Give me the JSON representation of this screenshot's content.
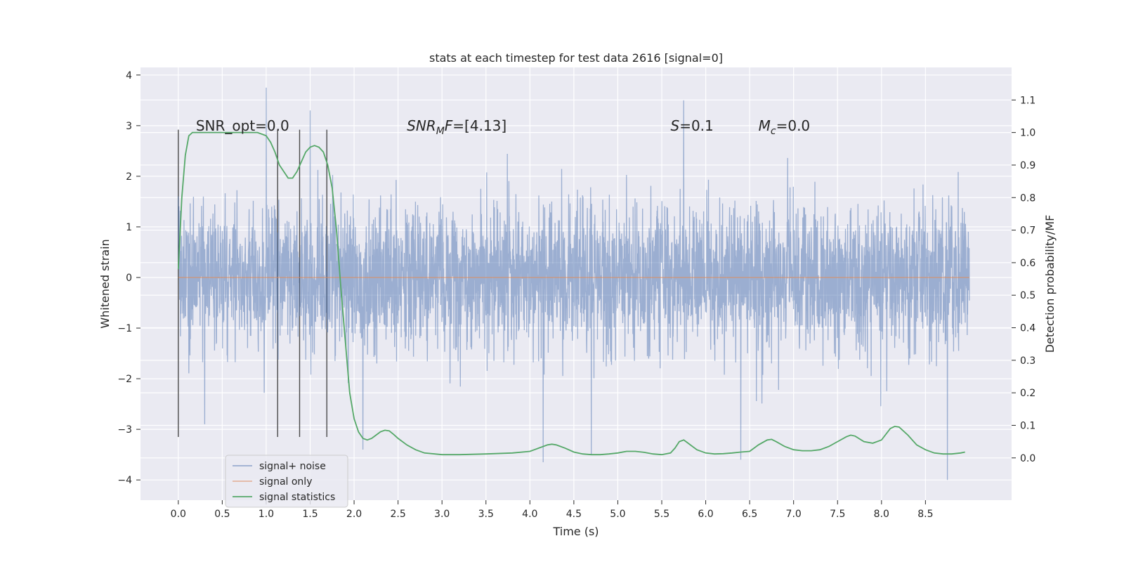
{
  "chart_data": {
    "type": "line",
    "title": "stats at each timestep for test data 2616 [signal=0]",
    "xlabel": "Time (s)",
    "ylabel": "Whitened strain",
    "y2label": "Detection probability/MF",
    "xlim": [
      -0.43,
      9.48
    ],
    "ylim": [
      -4.4,
      4.15
    ],
    "y2lim": [
      -0.13,
      1.2
    ],
    "x_ticks": [
      0.0,
      0.5,
      1.0,
      1.5,
      2.0,
      2.5,
      3.0,
      3.5,
      4.0,
      4.5,
      5.0,
      5.5,
      6.0,
      6.5,
      7.0,
      7.5,
      8.0,
      8.5
    ],
    "x_tick_labels": [
      "0.0",
      "0.5",
      "1.0",
      "1.5",
      "2.0",
      "2.5",
      "3.0",
      "3.5",
      "4.0",
      "4.5",
      "5.0",
      "5.5",
      "6.0",
      "6.5",
      "7.0",
      "7.5",
      "8.0",
      "8.5"
    ],
    "y_ticks": [
      -4,
      -3,
      -2,
      -1,
      0,
      1,
      2,
      3,
      4
    ],
    "y_tick_labels": [
      "−4",
      "−3",
      "−2",
      "−1",
      "0",
      "1",
      "2",
      "3",
      "4"
    ],
    "y2_ticks": [
      0.0,
      0.1,
      0.2,
      0.3,
      0.4,
      0.5,
      0.6,
      0.7,
      0.8,
      0.9,
      1.0,
      1.1
    ],
    "y2_tick_labels": [
      "0.0",
      "0.1",
      "0.2",
      "0.3",
      "0.4",
      "0.5",
      "0.6",
      "0.7",
      "0.8",
      "0.9",
      "1.0",
      "1.1"
    ],
    "grid": true,
    "legend_position": "lower-left",
    "annotations": [
      {
        "x": 0.2,
        "y": 3.0,
        "main": "SNR_opt=0.0",
        "style": "plain"
      },
      {
        "x": 2.6,
        "y": 3.0,
        "italic": "SNR",
        "sub": "M",
        "rest_italic": "F",
        "rest": "=[4.13]"
      },
      {
        "x": 5.6,
        "y": 3.0,
        "italic": "S",
        "sub": "",
        "rest_italic": "",
        "rest": "=0.1"
      },
      {
        "x": 6.6,
        "y": 3.0,
        "italic": "M",
        "sub": "c",
        "rest_italic": "",
        "rest": "=0.0"
      }
    ],
    "vertical_lines": [
      0.0,
      1.13,
      1.38,
      1.69
    ],
    "vertical_line_range": [
      -3.15,
      2.92
    ],
    "series": [
      {
        "name": "signal+ noise",
        "color": "#4c72b0",
        "kind": "noise",
        "x_range": [
          0.0,
          9.0
        ],
        "points": 3600,
        "sigma": 0.72,
        "axis": "left",
        "extremes": [
          {
            "t": 1.0,
            "v": 3.75
          },
          {
            "t": 1.5,
            "v": 3.3
          },
          {
            "t": 5.75,
            "v": 3.5
          },
          {
            "t": 8.75,
            "v": -4.0
          },
          {
            "t": 4.15,
            "v": -3.65
          },
          {
            "t": 4.7,
            "v": -3.5
          },
          {
            "t": 6.4,
            "v": -3.6
          },
          {
            "t": 2.1,
            "v": -3.4
          },
          {
            "t": 0.3,
            "v": -2.9
          }
        ]
      },
      {
        "name": "signal only",
        "color": "#dd8452",
        "kind": "flat",
        "x": [
          0.0,
          9.0
        ],
        "y": [
          0.0,
          0.0
        ],
        "axis": "left"
      },
      {
        "name": "signal statistics",
        "color": "#55a868",
        "kind": "line",
        "axis": "right",
        "x": [
          0.0,
          0.04,
          0.08,
          0.12,
          0.16,
          0.2,
          0.25,
          0.3,
          0.4,
          0.5,
          0.6,
          0.7,
          0.8,
          0.9,
          0.95,
          1.0,
          1.05,
          1.1,
          1.15,
          1.2,
          1.25,
          1.3,
          1.35,
          1.4,
          1.45,
          1.5,
          1.55,
          1.6,
          1.65,
          1.7,
          1.75,
          1.8,
          1.85,
          1.9,
          1.95,
          2.0,
          2.05,
          2.1,
          2.15,
          2.2,
          2.25,
          2.3,
          2.35,
          2.4,
          2.45,
          2.5,
          2.6,
          2.7,
          2.8,
          3.0,
          3.2,
          3.5,
          3.8,
          4.0,
          4.1,
          4.2,
          4.25,
          4.3,
          4.4,
          4.5,
          4.6,
          4.7,
          4.8,
          4.9,
          5.0,
          5.1,
          5.2,
          5.3,
          5.4,
          5.5,
          5.6,
          5.65,
          5.7,
          5.75,
          5.8,
          5.9,
          6.0,
          6.1,
          6.2,
          6.3,
          6.4,
          6.5,
          6.55,
          6.6,
          6.7,
          6.75,
          6.8,
          6.9,
          7.0,
          7.1,
          7.2,
          7.3,
          7.4,
          7.5,
          7.6,
          7.65,
          7.7,
          7.8,
          7.9,
          8.0,
          8.1,
          8.15,
          8.2,
          8.3,
          8.4,
          8.5,
          8.6,
          8.7,
          8.8,
          8.9,
          8.95
        ],
        "y": [
          0.58,
          0.8,
          0.93,
          0.99,
          1.0,
          1.0,
          1.0,
          1.0,
          1.0,
          1.0,
          1.0,
          1.0,
          1.0,
          1.0,
          0.995,
          0.99,
          0.97,
          0.94,
          0.9,
          0.88,
          0.86,
          0.86,
          0.88,
          0.91,
          0.94,
          0.955,
          0.96,
          0.955,
          0.94,
          0.9,
          0.83,
          0.7,
          0.52,
          0.36,
          0.2,
          0.12,
          0.08,
          0.06,
          0.055,
          0.06,
          0.07,
          0.08,
          0.085,
          0.083,
          0.072,
          0.06,
          0.04,
          0.025,
          0.015,
          0.01,
          0.01,
          0.012,
          0.015,
          0.02,
          0.03,
          0.04,
          0.042,
          0.04,
          0.03,
          0.018,
          0.012,
          0.01,
          0.01,
          0.012,
          0.015,
          0.02,
          0.02,
          0.017,
          0.012,
          0.01,
          0.015,
          0.03,
          0.05,
          0.055,
          0.045,
          0.025,
          0.015,
          0.012,
          0.013,
          0.015,
          0.018,
          0.02,
          0.03,
          0.04,
          0.055,
          0.057,
          0.05,
          0.035,
          0.025,
          0.022,
          0.022,
          0.025,
          0.035,
          0.05,
          0.065,
          0.07,
          0.067,
          0.05,
          0.045,
          0.055,
          0.09,
          0.097,
          0.095,
          0.07,
          0.04,
          0.025,
          0.015,
          0.012,
          0.012,
          0.015,
          0.018
        ]
      }
    ]
  }
}
